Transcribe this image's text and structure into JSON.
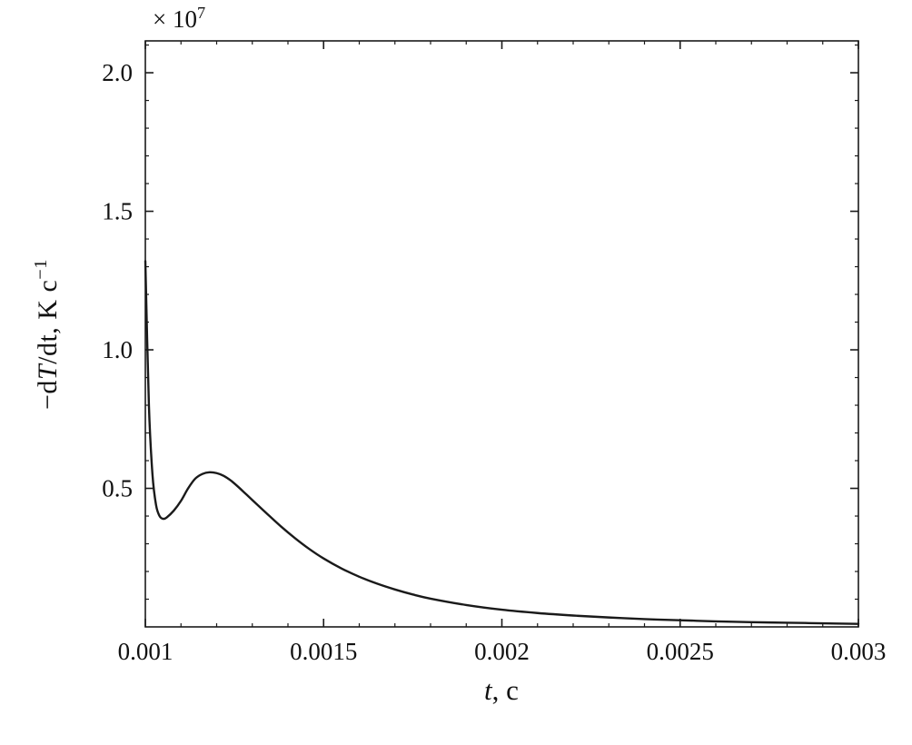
{
  "figure": {
    "background": "#ffffff",
    "curve_color": "#1a1a1a",
    "axis_color": "#1a1a1a"
  },
  "axes": {
    "ylabel": {
      "pre": "−d",
      "var": "T",
      "post": "/dt, K c",
      "sup": "−1"
    },
    "xlabel": {
      "var": "t",
      "post": ", c"
    },
    "multiplier": {
      "base": "× 10",
      "exp": "7"
    }
  },
  "chart_data": {
    "type": "line",
    "title": "",
    "xlabel": "t, c",
    "ylabel": "−dT/dt, K c⁻¹",
    "y_axis_multiplier": "× 10⁷",
    "xlim": [
      0.001,
      0.003
    ],
    "ylim": [
      0,
      21150000
    ],
    "y_unit_factor": 10000000,
    "grid": false,
    "legend": null,
    "x_ticks": {
      "values": [
        0.001,
        0.0015,
        0.002,
        0.0025,
        0.003
      ],
      "labels": [
        "0.001",
        "0.0015",
        "0.002",
        "0.0025",
        "0.003"
      ]
    },
    "y_ticks": {
      "values_e7": [
        0.5,
        1.0,
        1.5,
        2.0
      ],
      "labels": [
        "0.5",
        "1.0",
        "1.5",
        "2.0"
      ]
    },
    "minor_ticks": {
      "x_step": 0.0001,
      "y_step_e7": 0.1
    },
    "series": [
      {
        "name": "-dT/dt",
        "color": "#1a1a1a",
        "t": [
          0.001,
          0.00101,
          0.00102,
          0.00103,
          0.00104,
          0.00105,
          0.00106,
          0.00108,
          0.0011,
          0.00112,
          0.00114,
          0.00116,
          0.00118,
          0.0012,
          0.00122,
          0.00124,
          0.00126,
          0.00128,
          0.0013,
          0.00134,
          0.00138,
          0.00142,
          0.00146,
          0.0015,
          0.00155,
          0.0016,
          0.00165,
          0.0017,
          0.00175,
          0.0018,
          0.0019,
          0.002,
          0.0021,
          0.0022,
          0.0023,
          0.0024,
          0.0025,
          0.0026,
          0.0027,
          0.0028,
          0.0029,
          0.003
        ],
        "y_e7": [
          1.32,
          0.8,
          0.55,
          0.44,
          0.4,
          0.39,
          0.395,
          0.42,
          0.455,
          0.5,
          0.535,
          0.552,
          0.558,
          0.555,
          0.545,
          0.528,
          0.506,
          0.482,
          0.458,
          0.41,
          0.363,
          0.32,
          0.281,
          0.247,
          0.211,
          0.181,
          0.156,
          0.135,
          0.117,
          0.102,
          0.079,
          0.062,
          0.05,
          0.041,
          0.034,
          0.028,
          0.024,
          0.02,
          0.017,
          0.015,
          0.013,
          0.011
        ]
      }
    ]
  }
}
